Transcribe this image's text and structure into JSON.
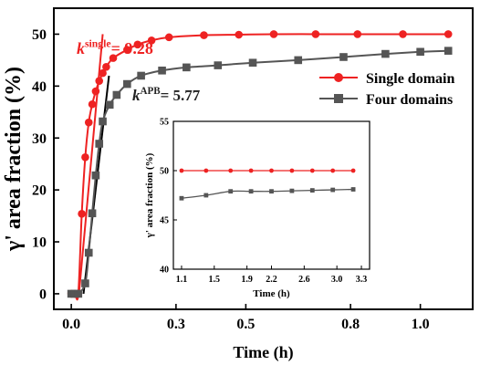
{
  "chart_data": [
    {
      "type": "line",
      "xlabel": "Time (h)",
      "ylabel": "γ' area fraction (%)",
      "xlim": [
        -0.05,
        1.15
      ],
      "ylim": [
        -3,
        55
      ],
      "xticks": [
        0.0,
        0.3,
        0.5,
        0.8,
        1.0
      ],
      "xtick_labels": [
        "0.0",
        "0.3",
        "0.5",
        "0.8",
        "1.0"
      ],
      "yticks": [
        0,
        10,
        20,
        30,
        40,
        50
      ],
      "ytick_labels": [
        "0",
        "10",
        "20",
        "30",
        "40",
        "50"
      ],
      "legend_position": "right",
      "series": [
        {
          "name": "Single domain",
          "color": "#ee2222",
          "marker": "circle",
          "x": [
            0.0,
            0.01,
            0.02,
            0.03,
            0.04,
            0.05,
            0.06,
            0.07,
            0.08,
            0.09,
            0.1,
            0.12,
            0.16,
            0.19,
            0.23,
            0.28,
            0.38,
            0.48,
            0.58,
            0.7,
            0.82,
            0.95,
            1.08
          ],
          "y": [
            0.0,
            0.0,
            0.0,
            15.4,
            26.3,
            33.0,
            36.5,
            39.0,
            41.0,
            42.5,
            43.7,
            45.4,
            47.0,
            48.0,
            48.8,
            49.4,
            49.8,
            49.9,
            50.0,
            50.0,
            50.0,
            50.0,
            50.0
          ]
        },
        {
          "name": "Four domains",
          "color": "#555555",
          "marker": "square",
          "x": [
            0.0,
            0.01,
            0.02,
            0.04,
            0.05,
            0.06,
            0.07,
            0.08,
            0.09,
            0.11,
            0.13,
            0.16,
            0.2,
            0.26,
            0.33,
            0.42,
            0.52,
            0.65,
            0.78,
            0.9,
            1.0,
            1.08
          ],
          "y": [
            0.0,
            0.0,
            0.0,
            2.0,
            7.9,
            15.5,
            22.8,
            28.9,
            33.2,
            36.4,
            38.3,
            40.4,
            42.0,
            43.0,
            43.6,
            44.0,
            44.5,
            45.0,
            45.6,
            46.2,
            46.6,
            46.8
          ]
        }
      ],
      "fit_lines": [
        {
          "color": "#ee2222",
          "x": [
            0.022,
            0.09
          ],
          "y": [
            0.0,
            50.0
          ]
        },
        {
          "color": "#000000",
          "x": [
            0.035,
            0.108
          ],
          "y": [
            0.0,
            42.0
          ]
        }
      ],
      "annotations": [
        {
          "prefix": "k",
          "superscript": "single",
          "suffix": "= 9.28",
          "color": "#ee2222"
        },
        {
          "prefix": "k",
          "superscript": "APB",
          "suffix": "= 5.77",
          "color": "#222222"
        }
      ]
    },
    {
      "type": "line",
      "xlabel": "Time (h)",
      "ylabel": "γ' area fraction (%)",
      "xlim": [
        1.0,
        3.4
      ],
      "ylim": [
        40,
        55
      ],
      "xticks": [
        1.1,
        1.5,
        1.9,
        2.2,
        2.6,
        3.0,
        3.3
      ],
      "xtick_labels": [
        "1.1",
        "1.5",
        "1.9",
        "2.2",
        "2.6",
        "3.0",
        "3.3"
      ],
      "yticks": [
        40,
        45,
        50,
        55
      ],
      "ytick_labels": [
        "40",
        "45",
        "50",
        "55"
      ],
      "series": [
        {
          "name": "Single domain",
          "color": "#ee2222",
          "marker": "circle",
          "x": [
            1.1,
            1.4,
            1.7,
            1.95,
            2.2,
            2.45,
            2.7,
            2.95,
            3.2
          ],
          "y": [
            50.0,
            50.0,
            50.0,
            50.0,
            50.0,
            50.0,
            50.0,
            50.0,
            50.0
          ]
        },
        {
          "name": "Four domains",
          "color": "#555555",
          "marker": "square",
          "x": [
            1.1,
            1.4,
            1.7,
            1.95,
            2.2,
            2.45,
            2.7,
            2.95,
            3.2
          ],
          "y": [
            47.2,
            47.5,
            47.9,
            47.9,
            47.9,
            47.95,
            48.0,
            48.05,
            48.1
          ]
        }
      ]
    }
  ]
}
